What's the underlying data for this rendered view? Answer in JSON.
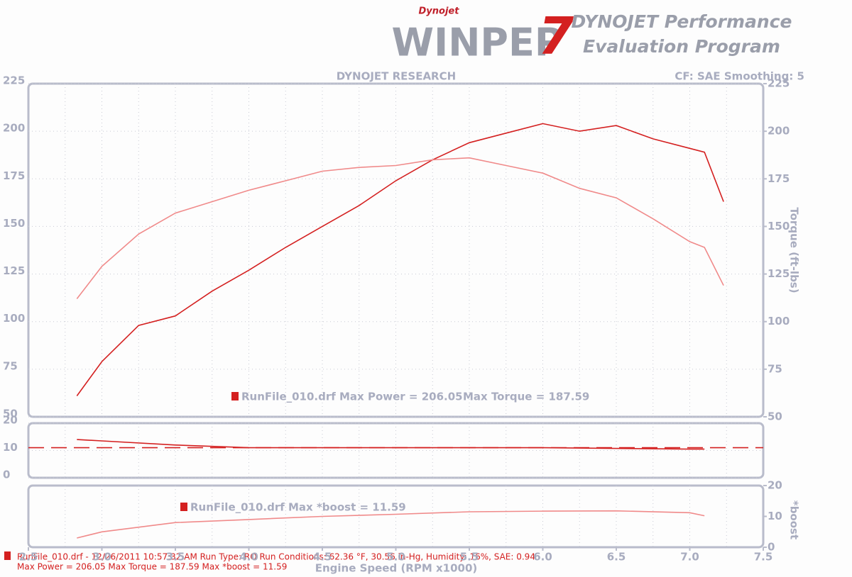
{
  "header": {
    "logo_small": "Dynojet",
    "logo": "WINPEP",
    "logo_number": "7",
    "title_line1": "DYNOJET Performance",
    "title_line2": "Evaluation Program"
  },
  "chart_data": [
    {
      "type": "line",
      "title": "DYNOJET RESEARCH",
      "subtitle": "CF: SAE  Smoothing: 5",
      "x": [
        2.83,
        3,
        3.25,
        3.5,
        3.75,
        4,
        4.25,
        4.5,
        4.75,
        5,
        5.25,
        5.5,
        5.75,
        6,
        6.25,
        6.5,
        6.75,
        7,
        7.1,
        7.23
      ],
      "series": [
        {
          "color": "#d42020",
          "values": [
            61,
            79,
            98,
            103,
            116,
            127,
            139,
            150,
            161,
            174,
            185,
            194,
            199,
            204,
            200,
            203,
            196,
            191,
            189,
            163
          ]
        },
        {
          "color": "#f08a8a",
          "axis": "y2",
          "values": [
            112,
            129,
            146,
            157,
            163,
            169,
            174,
            179,
            181,
            182,
            185,
            186,
            182,
            178,
            170,
            165,
            154,
            142,
            139,
            119
          ]
        }
      ],
      "xlim": [
        2.5,
        7.5
      ],
      "ylim": [
        50,
        225
      ],
      "yticks": [
        50,
        75,
        100,
        125,
        150,
        175,
        200,
        225
      ],
      "y2lim": [
        50,
        225
      ],
      "y2ticks": [
        50,
        75,
        100,
        125,
        150,
        175,
        200,
        225
      ],
      "y2label": "Torque (ft-lbs)",
      "grid": true,
      "annotations": [
        "RunFile_010.drf Max Power = 206.05",
        "Max Torque = 187.59"
      ]
    },
    {
      "type": "line",
      "x": [
        2.5,
        2.83,
        3,
        3.5,
        4,
        5,
        6,
        7,
        7.1,
        7.5
      ],
      "series": [
        {
          "color": "#d42020",
          "values": [
            null,
            14,
            13.5,
            12,
            11,
            11,
            11,
            10.5,
            10.5,
            null
          ]
        },
        {
          "color": "#d42020",
          "dash": true,
          "values": [
            11,
            11,
            11,
            11,
            11,
            11,
            11,
            11,
            11,
            11
          ]
        }
      ],
      "xlim": [
        2.5,
        7.5
      ],
      "ylim": [
        0,
        20
      ],
      "yticks": [
        0,
        10,
        20
      ],
      "grid": true
    },
    {
      "type": "line",
      "x": [
        2.83,
        3,
        3.5,
        4,
        4.5,
        5,
        5.5,
        6,
        6.5,
        7,
        7.1
      ],
      "series": [
        {
          "color": "#f08a8a",
          "axis": "y2",
          "values": [
            3,
            5,
            8,
            9,
            10,
            10.7,
            11.5,
            11.7,
            11.8,
            11.2,
            10.2
          ]
        }
      ],
      "xlim": [
        2.5,
        7.5
      ],
      "y2lim": [
        0,
        20
      ],
      "y2ticks": [
        0,
        10,
        20
      ],
      "y2label": "*boost",
      "grid": true,
      "xticks": [
        2.5,
        {
          "value": 3,
          "label": "3.0"
        },
        3.5,
        {
          "value": 4,
          "label": "4.0"
        },
        4.5,
        {
          "value": 5,
          "label": "5.0"
        },
        5.5,
        {
          "value": 6,
          "label": "6.0"
        },
        6.5,
        {
          "value": 7,
          "label": "7.0"
        },
        7.5
      ],
      "xlabel": "Engine Speed (RPM x1000)",
      "annotations": [
        "RunFile_010.drf Max *boost = 11.59"
      ]
    }
  ],
  "footer": {
    "line1": "RunFile_010.drf - 12/26/2011 10:57:32 AM  Run Type: RO  Run Conditions: 62.36 °F, 30.56 in-Hg,  Humidity:  16%, SAE: 0.94",
    "line2": "Max Power = 206.05  Max Torque = 187.59  Max *boost = 11.59"
  }
}
